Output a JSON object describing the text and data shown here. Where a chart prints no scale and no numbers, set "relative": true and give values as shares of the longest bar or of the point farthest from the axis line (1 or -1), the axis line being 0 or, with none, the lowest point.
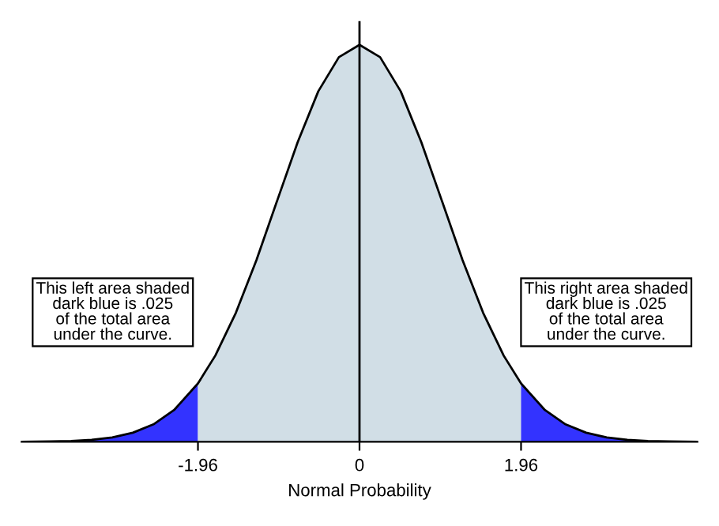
{
  "chart_data": {
    "type": "area",
    "relative": true,
    "xlabel": "Normal Probability",
    "xlim": [
      -4.1,
      4.1
    ],
    "xticks": [
      -1.96,
      0,
      1.96
    ],
    "tick_labels": "x",
    "grid": false,
    "legend": false,
    "series": [
      {
        "color": "#3333ff",
        "x": [
          -4.1,
          -3.75,
          -3.5,
          -3.25,
          -3,
          -2.75,
          -2.5,
          -2.25,
          -1.96
        ],
        "values": [
          0.0,
          0.001,
          0.002,
          0.005,
          0.011,
          0.023,
          0.044,
          0.08,
          0.147
        ]
      },
      {
        "color": "#d1dee6",
        "x": [
          -1.96,
          -1.75,
          -1.5,
          -1.25,
          -1,
          -0.75,
          -0.5,
          -0.25,
          0,
          0.25,
          0.5,
          0.75,
          1,
          1.25,
          1.5,
          1.75,
          1.96
        ],
        "values": [
          0.147,
          0.217,
          0.325,
          0.458,
          0.607,
          0.755,
          0.883,
          0.969,
          1,
          0.969,
          0.883,
          0.755,
          0.607,
          0.458,
          0.325,
          0.217,
          0.147
        ]
      },
      {
        "color": "#3333ff",
        "x": [
          1.96,
          2.25,
          2.5,
          2.75,
          3,
          3.25,
          3.5,
          3.75,
          4.1
        ],
        "values": [
          0.147,
          0.08,
          0.044,
          0.023,
          0.011,
          0.005,
          0.002,
          0.001,
          0.0
        ]
      },
      {
        "type": "line",
        "color": "#000000",
        "x": [
          -4.1,
          -3.75,
          -3.5,
          -3.25,
          -3,
          -2.75,
          -2.5,
          -2.25,
          -1.96,
          -1.75,
          -1.5,
          -1.25,
          -1,
          -0.75,
          -0.5,
          -0.25,
          0,
          0.25,
          0.5,
          0.75,
          1,
          1.25,
          1.5,
          1.75,
          1.96,
          2.25,
          2.5,
          2.75,
          3,
          3.25,
          3.5,
          3.75,
          4.1
        ],
        "values": [
          0.0,
          0.001,
          0.002,
          0.005,
          0.011,
          0.023,
          0.044,
          0.08,
          0.147,
          0.217,
          0.325,
          0.458,
          0.607,
          0.755,
          0.883,
          0.969,
          1,
          0.969,
          0.883,
          0.755,
          0.607,
          0.458,
          0.325,
          0.217,
          0.147,
          0.08,
          0.044,
          0.023,
          0.011,
          0.005,
          0.002,
          0.001,
          0.0
        ]
      }
    ],
    "ref_lines": [
      {
        "axis": "x",
        "value": 0,
        "color": "#000000"
      }
    ],
    "annotations": [
      "This left area shaded\ndark blue is .025\nof the total area\nunder the curve.",
      "This right area shaded\ndark blue is .025\nof the total area\nunder the curve."
    ]
  }
}
